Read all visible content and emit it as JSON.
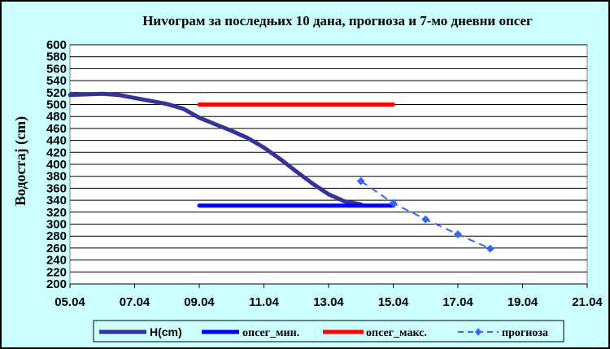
{
  "chart_data": {
    "type": "line",
    "title": "Ниvограм за последњих 10 дана, прогноза и 7-мо дневни опсег",
    "ylabel": "Водостај (cm)",
    "xlabel": "",
    "ylim": [
      200,
      600
    ],
    "yticks": [
      200,
      220,
      240,
      260,
      280,
      300,
      320,
      340,
      360,
      380,
      400,
      420,
      440,
      460,
      480,
      500,
      520,
      540,
      560,
      580,
      600
    ],
    "xlim": [
      0,
      16
    ],
    "xticks": [
      "05.04",
      "07.04",
      "09.04",
      "11.04",
      "13.04",
      "15.04",
      "17.04",
      "19.04",
      "21.04"
    ],
    "grid": "horizontal",
    "legend_position": "bottom",
    "series": [
      {
        "name": "H(cm)",
        "color": "#333399",
        "style": "solid",
        "x": [
          0,
          0.5,
          1,
          1.5,
          2,
          2.5,
          3,
          3.5,
          4,
          4.5,
          5,
          5.5,
          6,
          6.5,
          7,
          7.5,
          8,
          8.5,
          9
        ],
        "y": [
          516,
          517,
          518,
          516,
          511,
          506,
          501,
          493,
          478,
          467,
          456,
          444,
          428,
          409,
          388,
          368,
          350,
          338,
          333
        ]
      },
      {
        "name": "опсег_мин.",
        "color": "#0000ff",
        "style": "solid",
        "x": [
          4,
          10
        ],
        "y": [
          331,
          331
        ]
      },
      {
        "name": "опсег_макс.",
        "color": "#ff0000",
        "style": "solid",
        "x": [
          4,
          10
        ],
        "y": [
          500,
          500
        ]
      },
      {
        "name": "прогноза",
        "color": "#3366ff",
        "style": "dashed",
        "marker": "diamond",
        "x": [
          9,
          10,
          11,
          12,
          13
        ],
        "y": [
          372,
          335,
          308,
          283,
          259
        ]
      }
    ]
  }
}
